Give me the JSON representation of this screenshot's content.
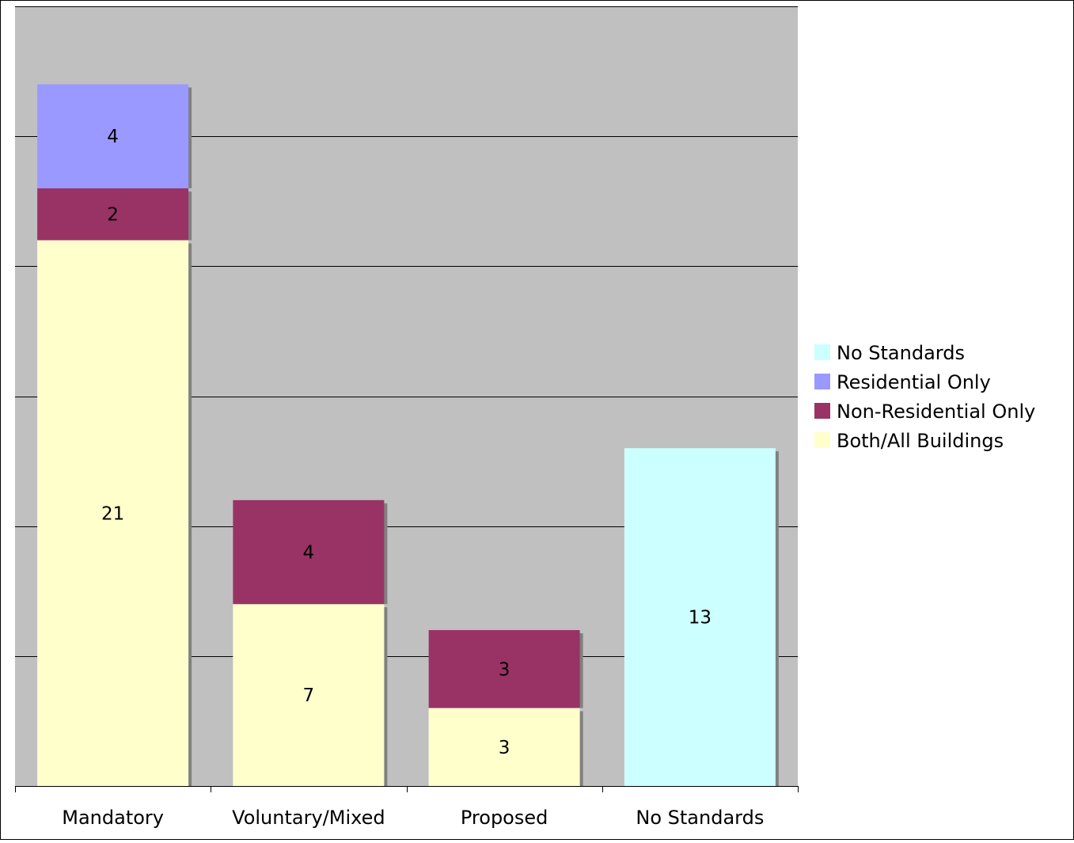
{
  "chart_data": {
    "type": "bar",
    "stacked": true,
    "title": "",
    "xlabel": "",
    "ylabel": "",
    "ylim": [
      0,
      30
    ],
    "grid": true,
    "legend_position": "right",
    "categories": [
      "Mandatory",
      "Voluntary/Mixed",
      "Proposed",
      "No Standards"
    ],
    "series": [
      {
        "name": "Both/All Buildings",
        "color": "#FFFFCC",
        "values": [
          21,
          7,
          3,
          0
        ]
      },
      {
        "name": "Non-Residential Only",
        "color": "#993366",
        "values": [
          2,
          4,
          3,
          0
        ]
      },
      {
        "name": "Residential Only",
        "color": "#9999FF",
        "values": [
          4,
          0,
          0,
          0
        ]
      },
      {
        "name": "No Standards",
        "color": "#CCFFFF",
        "values": [
          0,
          0,
          0,
          13
        ]
      }
    ],
    "legend_order": [
      "No Standards",
      "Residential Only",
      "Non-Residential Only",
      "Both/All Buildings"
    ],
    "plot_background": "#C0C0C0"
  }
}
